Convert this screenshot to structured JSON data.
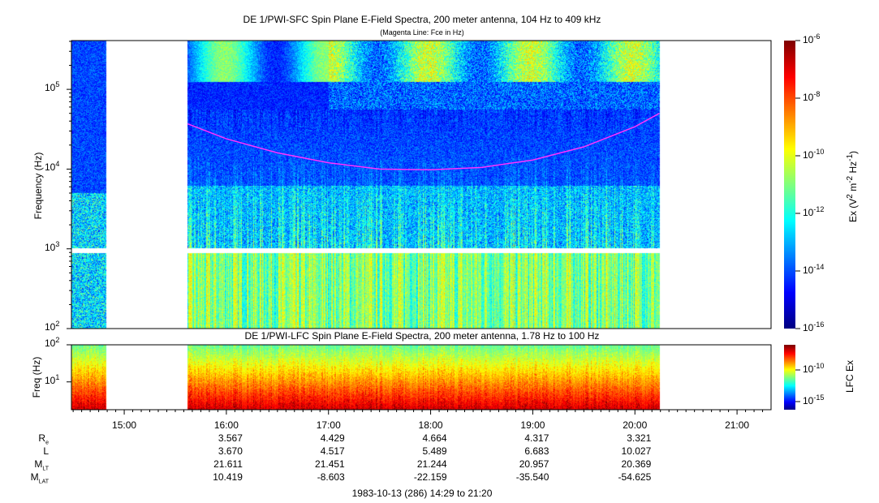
{
  "chart_data": [
    {
      "type": "heatmap",
      "title": "DE 1/PWI-SFC  Spin Plane E-Field Spectra, 200 meter antenna, 104 Hz to 409 kHz",
      "subtitle": "(Magenta Line: Fce in Hz)",
      "ylabel": "Frequency (Hz)",
      "yscale": "log",
      "ylim": [
        100,
        409000
      ],
      "yticks": [
        {
          "b": "10",
          "e": "2"
        },
        {
          "b": "10",
          "e": "3"
        },
        {
          "b": "10",
          "e": "4"
        },
        {
          "b": "10",
          "e": "5"
        }
      ],
      "data_intervals_hours": [
        [
          14.483,
          14.817
        ],
        [
          15.617,
          20.24
        ]
      ],
      "fce_line": {
        "color": "#ff33ff",
        "hours": [
          15.62,
          16.0,
          16.5,
          17.0,
          17.5,
          18.0,
          18.5,
          19.0,
          19.5,
          20.0,
          20.24
        ],
        "hz": [
          37000,
          24000,
          16000,
          12000,
          10000,
          9800,
          10500,
          13000,
          19000,
          34000,
          50000
        ]
      },
      "colorbar": {
        "label": "Ex (V² m⁻² Hz⁻¹)",
        "label_parts": [
          "Ex (V",
          "2",
          " m",
          "-2",
          " Hz",
          "-1",
          ")"
        ],
        "range": [
          1e-16,
          1e-06
        ],
        "ticks": [
          {
            "b": "10",
            "e": "-6"
          },
          {
            "b": "10",
            "e": "-8"
          },
          {
            "b": "10",
            "e": "-10"
          },
          {
            "b": "10",
            "e": "-12"
          },
          {
            "b": "10",
            "e": "-14"
          },
          {
            "b": "10",
            "e": "-16"
          }
        ]
      }
    },
    {
      "type": "heatmap",
      "title": "DE 1/PWI-LFC  Spin Plane E-Field Spectra, 200 meter antenna, 1.78 Hz to 100 Hz",
      "ylabel": "Freq (Hz)",
      "yscale": "log",
      "ylim": [
        1.78,
        100
      ],
      "yticks": [
        {
          "b": "10",
          "e": "2"
        },
        {
          "b": "10",
          "e": "1"
        }
      ],
      "colorbar": {
        "label": "LFC Ex",
        "ticks": [
          {
            "b": "10",
            "e": "-10"
          },
          {
            "b": "10",
            "e": "-15"
          }
        ]
      }
    }
  ],
  "x_axis": {
    "ticks": [
      "15:00",
      "16:00",
      "17:00",
      "18:00",
      "19:00",
      "20:00",
      "21:00"
    ],
    "start_hours": 14.483,
    "end_hours": 21.333
  },
  "ephemeris": {
    "labels": [
      {
        "m": "R",
        "s": "e"
      },
      {
        "m": "L",
        "s": ""
      },
      {
        "m": "M",
        "s": "LT"
      },
      {
        "m": "M",
        "s": "LAT"
      }
    ],
    "columns": [
      "16:00",
      "17:00",
      "18:00",
      "19:00",
      "20:00"
    ],
    "rows": [
      [
        "3.567",
        "4.429",
        "4.664",
        "4.317",
        "3.321"
      ],
      [
        "3.670",
        "4.517",
        "5.489",
        "6.683",
        "10.027"
      ],
      [
        "21.611",
        "21.451",
        "21.244",
        "20.957",
        "20.369"
      ],
      [
        "10.419",
        "-8.603",
        "-22.159",
        "-35.540",
        "-54.625"
      ]
    ]
  },
  "footer": "1983-10-13 (286) 14:29 to 21:20"
}
